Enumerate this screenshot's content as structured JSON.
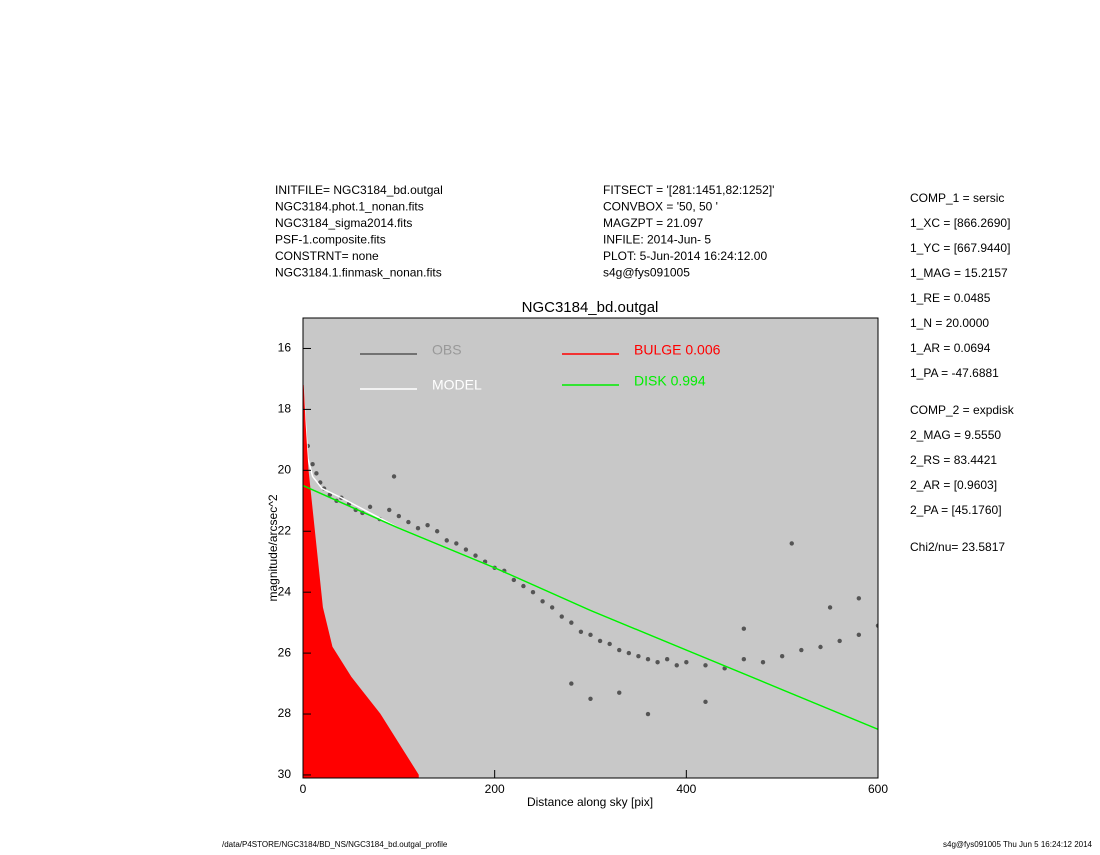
{
  "header_left": [
    "INITFILE= NGC3184_bd.outgal",
    "NGC3184.phot.1_nonan.fits",
    "NGC3184_sigma2014.fits",
    "PSF-1.composite.fits",
    "CONSTRNT= none",
    "NGC3184.1.finmask_nonan.fits"
  ],
  "header_middle": [
    "FITSECT = '[281:1451,82:1252]'",
    "CONVBOX = '50, 50  '",
    "MAGZPT  =              21.097",
    "INFILE: 2014-Jun- 5",
    "PLOT:  5-Jun-2014 16:24:12.00",
    "s4g@fys091005"
  ],
  "params": [
    "COMP_1  = sersic",
    "1_XC    = [866.2690]",
    "1_YC    = [667.9440]",
    "1_MAG   = 15.2157",
    "1_RE    = 0.0485",
    "1_N     = 20.0000",
    "1_AR    = 0.0694",
    "1_PA    = -47.6881",
    "COMP_2  = expdisk",
    "2_MAG   = 9.5550",
    "2_RS    = 83.4421",
    "2_AR    = [0.9603]",
    "2_PA    = [45.1760]",
    "Chi2/nu=      23.5817"
  ],
  "footer_left": "/data/P4STORE/NGC3184/BD_NS/NGC3184_bd.outgal_profile",
  "footer_right": "s4g@fys091005  Thu Jun  5 16:24:12 2014",
  "chart_data": {
    "type": "scatter",
    "title": "NGC3184_bd.outgal",
    "x_label": "Distance along sky [pix]",
    "y_label": "magnitude/arcsec^2",
    "xlim": [
      0,
      600
    ],
    "ylim": [
      30.1,
      15
    ],
    "xticks": [
      0,
      200,
      400,
      600
    ],
    "yticks": [
      16,
      18,
      20,
      22,
      24,
      26,
      28,
      30
    ],
    "background": "#c8c8c8",
    "series": [
      {
        "name": "OBS",
        "color": "#555555",
        "kind": "points",
        "x": [
          5,
          10,
          14,
          18,
          22,
          28,
          35,
          40,
          48,
          55,
          62,
          70,
          80,
          90,
          95,
          100,
          110,
          120,
          130,
          140,
          150,
          160,
          170,
          180,
          190,
          200,
          210,
          220,
          230,
          240,
          250,
          260,
          270,
          280,
          290,
          300,
          310,
          320,
          330,
          340,
          350,
          360,
          370,
          380,
          390,
          400,
          420,
          440,
          460,
          480,
          500,
          520,
          540,
          560,
          580,
          600,
          280,
          300,
          330,
          360,
          420,
          460,
          510,
          550,
          580
        ],
        "values": [
          19.2,
          19.8,
          20.1,
          20.4,
          20.6,
          20.8,
          21.0,
          20.9,
          21.1,
          21.3,
          21.4,
          21.2,
          21.6,
          21.3,
          20.2,
          21.5,
          21.7,
          21.9,
          21.8,
          22.0,
          22.3,
          22.4,
          22.6,
          22.8,
          23.0,
          23.2,
          23.3,
          23.6,
          23.8,
          24.0,
          24.3,
          24.5,
          24.8,
          25.0,
          25.3,
          25.4,
          25.6,
          25.7,
          25.9,
          26.0,
          26.1,
          26.2,
          26.3,
          26.2,
          26.4,
          26.3,
          26.4,
          26.5,
          26.2,
          26.3,
          26.1,
          25.9,
          25.8,
          25.6,
          25.4,
          25.1,
          27.0,
          27.5,
          27.3,
          28.0,
          27.6,
          25.2,
          22.4,
          24.5,
          24.2
        ]
      },
      {
        "name": "MODEL",
        "color": "#ffffff",
        "kind": "line",
        "x": [
          0,
          5,
          10,
          20,
          40,
          100,
          200,
          300,
          400,
          500,
          600
        ],
        "values": [
          17.2,
          19.6,
          20.2,
          20.6,
          20.9,
          21.9,
          23.2,
          24.6,
          25.9,
          27.2,
          28.5
        ]
      },
      {
        "name": "BULGE  0.006",
        "color": "#ff0000",
        "kind": "area",
        "x": [
          0,
          2,
          5,
          10,
          15,
          20,
          30,
          40,
          50,
          60,
          80,
          100,
          120
        ],
        "values": [
          17.2,
          18.5,
          20.0,
          21.5,
          23.0,
          24.5,
          25.8,
          26.3,
          26.8,
          27.2,
          28.0,
          29.0,
          30.0
        ]
      },
      {
        "name": "DISK  0.994",
        "color": "#00ee00",
        "kind": "line",
        "x": [
          0,
          100,
          200,
          300,
          400,
          500,
          600
        ],
        "values": [
          20.5,
          21.9,
          23.2,
          24.6,
          25.9,
          27.2,
          28.5
        ]
      }
    ]
  }
}
